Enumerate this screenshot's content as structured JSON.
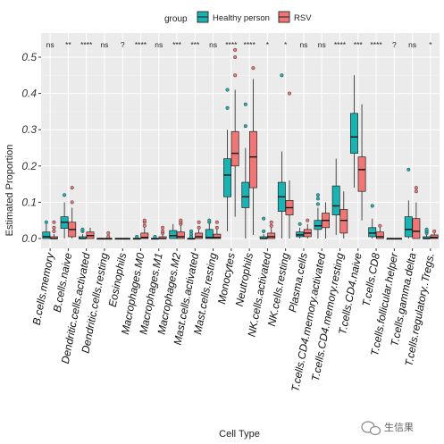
{
  "chart_data": {
    "type": "box",
    "legend": {
      "title": "group",
      "position": "top"
    },
    "xlabel": "Cell Type",
    "ylabel": "Estimated Proportion",
    "ylim": [
      0,
      0.5
    ],
    "yticks": [
      "0.0",
      "0.1",
      "0.2",
      "0.3",
      "0.4",
      "0.5"
    ],
    "grid": true,
    "categories": [
      "B.cells.memory",
      "B.cells.naive",
      "Dendritic.cells.activated",
      "Dendritic.cells.resting",
      "Eosinophils",
      "Macrophages.M0",
      "Macrophages.M1",
      "Macrophages.M2",
      "Mast.cells.activated",
      "Mast.cells.resting",
      "Monocytes",
      "Neutrophils",
      "NK.cells.activated",
      "NK.cells.resting",
      "Plasma.cells",
      "T.cells.CD4.memory.activated",
      "T.cells.CD4.memory.resting",
      "T.cells.CD4.naive",
      "T.cells.CD8",
      "T.cells.follicular.helper",
      "T.cells.gamma.delta",
      "T.cells.regulatory..Tregs."
    ],
    "significance": [
      "ns",
      "**",
      "****",
      "ns",
      "?",
      "****",
      "ns",
      "***",
      "***",
      "ns",
      "****",
      "****",
      "*",
      "*",
      "ns",
      "ns",
      "****",
      "***",
      "****",
      "?",
      "ns",
      "*"
    ],
    "series": [
      {
        "name": "Healthy person",
        "color": "#1ab3b3",
        "boxes": [
          {
            "q1": 0.0,
            "median": 0.005,
            "q3": 0.018,
            "wlo": 0.0,
            "whi": 0.04,
            "outliers": [
              0.045
            ]
          },
          {
            "q1": 0.028,
            "median": 0.045,
            "q3": 0.06,
            "wlo": 0.0,
            "whi": 0.1,
            "outliers": [
              0.12
            ]
          },
          {
            "q1": 0.0,
            "median": 0.0,
            "q3": 0.005,
            "wlo": 0.0,
            "whi": 0.012,
            "outliers": [
              0.02,
              0.025
            ]
          },
          {
            "q1": 0.0,
            "median": 0.0,
            "q3": 0.0,
            "wlo": 0.0,
            "whi": 0.0,
            "outliers": []
          },
          {
            "q1": 0.0,
            "median": 0.0,
            "q3": 0.0,
            "wlo": 0.0,
            "whi": 0.0,
            "outliers": []
          },
          {
            "q1": 0.0,
            "median": 0.0,
            "q3": 0.0,
            "wlo": 0.0,
            "whi": 0.0,
            "outliers": [
              0.005
            ]
          },
          {
            "q1": 0.0,
            "median": 0.0,
            "q3": 0.0,
            "wlo": 0.0,
            "whi": 0.0,
            "outliers": [
              0.005
            ]
          },
          {
            "q1": 0.0,
            "median": 0.008,
            "q3": 0.022,
            "wlo": 0.0,
            "whi": 0.04,
            "outliers": []
          },
          {
            "q1": 0.0,
            "median": 0.0,
            "q3": 0.0,
            "wlo": 0.0,
            "whi": 0.0,
            "outliers": [
              0.005,
              0.012,
              0.02
            ]
          },
          {
            "q1": 0.0,
            "median": 0.003,
            "q3": 0.025,
            "wlo": 0.0,
            "whi": 0.04,
            "outliers": [
              0.045,
              0.05
            ]
          },
          {
            "q1": 0.115,
            "median": 0.175,
            "q3": 0.22,
            "wlo": 0.02,
            "whi": 0.3,
            "outliers": [
              0.36,
              0.41
            ]
          },
          {
            "q1": 0.085,
            "median": 0.115,
            "q3": 0.155,
            "wlo": 0.0,
            "whi": 0.25,
            "outliers": [
              0.31,
              0.37
            ]
          },
          {
            "q1": 0.0,
            "median": 0.0,
            "q3": 0.005,
            "wlo": 0.0,
            "whi": 0.012,
            "outliers": [
              0.02,
              0.055
            ]
          },
          {
            "q1": 0.075,
            "median": 0.115,
            "q3": 0.155,
            "wlo": 0.0,
            "whi": 0.24,
            "outliers": [
              0.45
            ]
          },
          {
            "q1": 0.005,
            "median": 0.01,
            "q3": 0.018,
            "wlo": 0.0,
            "whi": 0.03,
            "outliers": [
              0.04
            ]
          },
          {
            "q1": 0.025,
            "median": 0.035,
            "q3": 0.05,
            "wlo": 0.0,
            "whi": 0.085,
            "outliers": [
              0.095,
              0.11,
              0.12
            ]
          },
          {
            "q1": 0.065,
            "median": 0.09,
            "q3": 0.145,
            "wlo": 0.01,
            "whi": 0.22,
            "outliers": []
          },
          {
            "q1": 0.235,
            "median": 0.28,
            "q3": 0.345,
            "wlo": 0.14,
            "whi": 0.45,
            "outliers": []
          },
          {
            "q1": 0.005,
            "median": 0.015,
            "q3": 0.03,
            "wlo": 0.0,
            "whi": 0.055,
            "outliers": [
              0.09
            ]
          },
          {
            "q1": 0.0,
            "median": 0.0,
            "q3": 0.0,
            "wlo": 0.0,
            "whi": 0.0,
            "outliers": []
          },
          {
            "q1": 0.005,
            "median": 0.025,
            "q3": 0.06,
            "wlo": 0.0,
            "whi": 0.105,
            "outliers": [
              0.19
            ]
          },
          {
            "q1": 0.0,
            "median": 0.0,
            "q3": 0.005,
            "wlo": 0.0,
            "whi": 0.01,
            "outliers": [
              0.015,
              0.02,
              0.025
            ]
          }
        ]
      },
      {
        "name": "RSV",
        "color": "#f07575",
        "boxes": [
          {
            "q1": 0.0,
            "median": 0.0,
            "q3": 0.005,
            "wlo": 0.0,
            "whi": 0.012,
            "outliers": [
              0.02,
              0.03,
              0.045
            ]
          },
          {
            "q1": 0.005,
            "median": 0.025,
            "q3": 0.045,
            "wlo": 0.0,
            "whi": 0.085,
            "outliers": [
              0.1,
              0.14
            ]
          },
          {
            "q1": 0.0,
            "median": 0.008,
            "q3": 0.018,
            "wlo": 0.0,
            "whi": 0.03,
            "outliers": []
          },
          {
            "q1": 0.0,
            "median": 0.0,
            "q3": 0.0,
            "wlo": 0.0,
            "whi": 0.0,
            "outliers": [
              0.005,
              0.015
            ]
          },
          {
            "q1": 0.0,
            "median": 0.0,
            "q3": 0.0,
            "wlo": 0.0,
            "whi": 0.0,
            "outliers": []
          },
          {
            "q1": 0.0,
            "median": 0.003,
            "q3": 0.015,
            "wlo": 0.0,
            "whi": 0.03,
            "outliers": [
              0.035,
              0.045,
              0.05
            ]
          },
          {
            "q1": 0.0,
            "median": 0.0,
            "q3": 0.005,
            "wlo": 0.0,
            "whi": 0.01,
            "outliers": [
              0.015,
              0.02,
              0.03
            ]
          },
          {
            "q1": 0.0,
            "median": 0.005,
            "q3": 0.018,
            "wlo": 0.0,
            "whi": 0.035,
            "outliers": [
              0.04,
              0.045,
              0.05
            ]
          },
          {
            "q1": 0.0,
            "median": 0.005,
            "q3": 0.015,
            "wlo": 0.0,
            "whi": 0.025,
            "outliers": [
              0.03,
              0.045
            ]
          },
          {
            "q1": 0.0,
            "median": 0.003,
            "q3": 0.012,
            "wlo": 0.0,
            "whi": 0.025,
            "outliers": [
              0.03,
              0.045
            ]
          },
          {
            "q1": 0.2,
            "median": 0.235,
            "q3": 0.295,
            "wlo": 0.06,
            "whi": 0.41,
            "outliers": [
              0.45,
              0.5,
              0.52
            ]
          },
          {
            "q1": 0.14,
            "median": 0.225,
            "q3": 0.295,
            "wlo": 0.01,
            "whi": 0.44,
            "outliers": [
              0.47
            ]
          },
          {
            "q1": 0.0,
            "median": 0.005,
            "q3": 0.015,
            "wlo": 0.0,
            "whi": 0.03,
            "outliers": [
              0.035,
              0.045
            ]
          },
          {
            "q1": 0.065,
            "median": 0.085,
            "q3": 0.105,
            "wlo": 0.0,
            "whi": 0.16,
            "outliers": [
              0.4
            ]
          },
          {
            "q1": 0.005,
            "median": 0.015,
            "q3": 0.025,
            "wlo": 0.0,
            "whi": 0.04,
            "outliers": [
              0.05
            ]
          },
          {
            "q1": 0.03,
            "median": 0.05,
            "q3": 0.07,
            "wlo": 0.0,
            "whi": 0.1,
            "outliers": []
          },
          {
            "q1": 0.015,
            "median": 0.05,
            "q3": 0.08,
            "wlo": 0.0,
            "whi": 0.13,
            "outliers": []
          },
          {
            "q1": 0.13,
            "median": 0.19,
            "q3": 0.225,
            "wlo": 0.05,
            "whi": 0.37,
            "outliers": []
          },
          {
            "q1": 0.0,
            "median": 0.005,
            "q3": 0.018,
            "wlo": 0.0,
            "whi": 0.03,
            "outliers": [
              0.035
            ]
          },
          {
            "q1": 0.0,
            "median": 0.0,
            "q3": 0.0,
            "wlo": 0.0,
            "whi": 0.0,
            "outliers": []
          },
          {
            "q1": 0.0,
            "median": 0.02,
            "q3": 0.055,
            "wlo": 0.0,
            "whi": 0.1,
            "outliers": [
              0.13,
              0.14
            ]
          },
          {
            "q1": 0.0,
            "median": 0.003,
            "q3": 0.01,
            "wlo": 0.0,
            "whi": 0.015,
            "outliers": [
              0.02
            ]
          }
        ]
      }
    ]
  },
  "watermark": {
    "text": "生信果"
  }
}
